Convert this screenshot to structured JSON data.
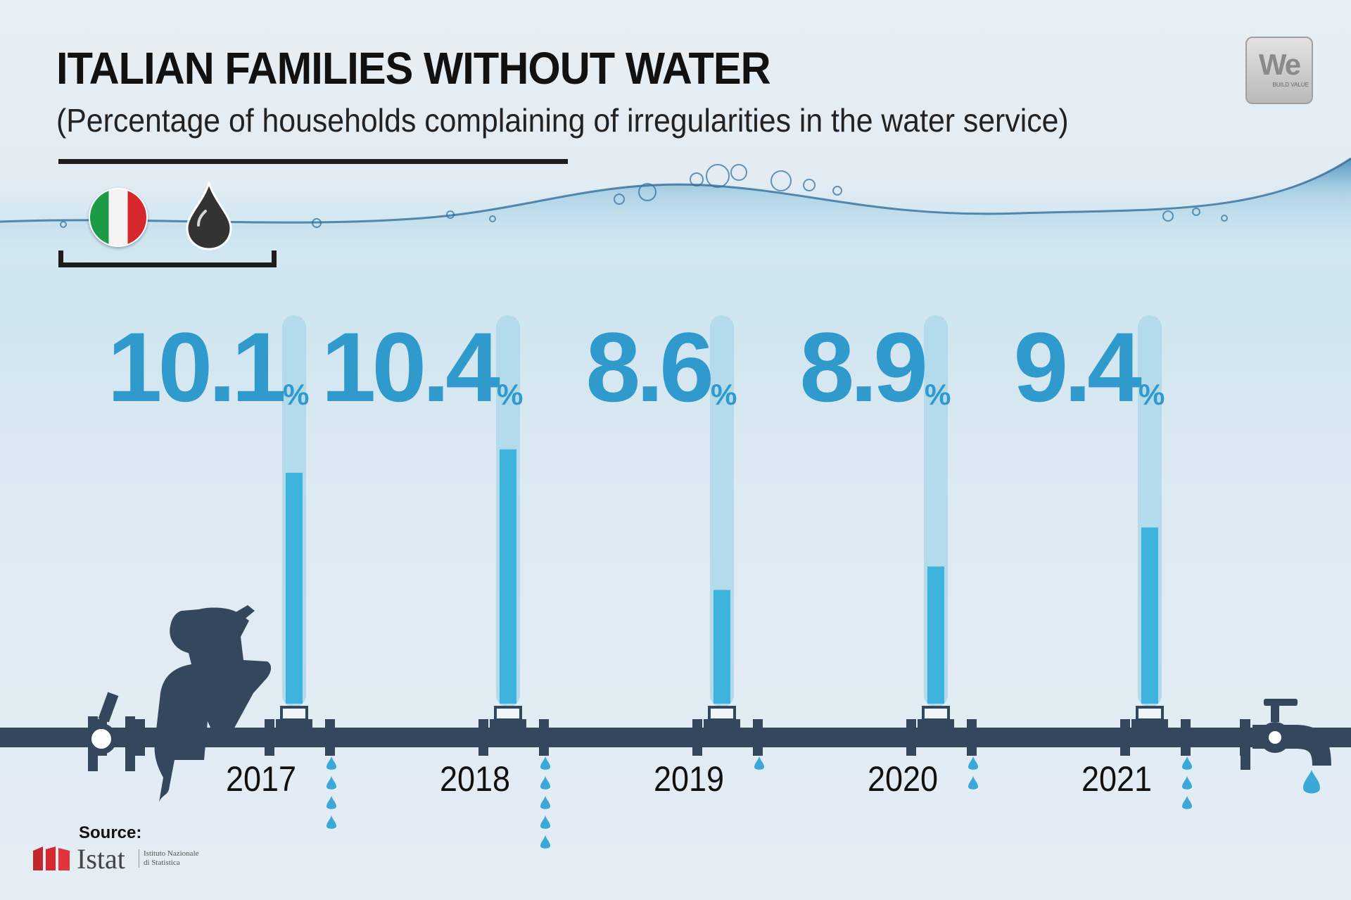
{
  "title": "ITALIAN FAMILIES WITHOUT WATER",
  "subtitle": "(Percentage of households complaining of irregularities in the water service)",
  "logo": {
    "main": "We",
    "tagline": "BUILD VALUE"
  },
  "icons": {
    "flag": "italy-flag-icon",
    "drop": "water-drop-icon",
    "person": "person-drinking-icon",
    "tap": "water-tap-icon",
    "valve": "valve-icon"
  },
  "colors": {
    "value_text": "#2f9acb",
    "bar_fill": "#3cb2dc",
    "tube": "#b3dbec",
    "pipe": "#34475c",
    "drip": "#3aa9d8"
  },
  "chart_data": {
    "type": "bar",
    "title": "ITALIAN FAMILIES WITHOUT WATER",
    "subtitle": "(Percentage of households complaining of irregularities in the water service)",
    "unit": "%",
    "categories": [
      "2017",
      "2018",
      "2019",
      "2020",
      "2021"
    ],
    "values": [
      10.1,
      10.4,
      8.6,
      8.9,
      9.4
    ],
    "value_labels": [
      "10.1",
      "10.4",
      "8.6",
      "8.9",
      "9.4"
    ],
    "drips": [
      4,
      5,
      1,
      2,
      3
    ]
  },
  "source": {
    "label": "Source:",
    "name": "Istat",
    "sub_line1": "Istituto Nazionale",
    "sub_line2": "di Statistica"
  }
}
